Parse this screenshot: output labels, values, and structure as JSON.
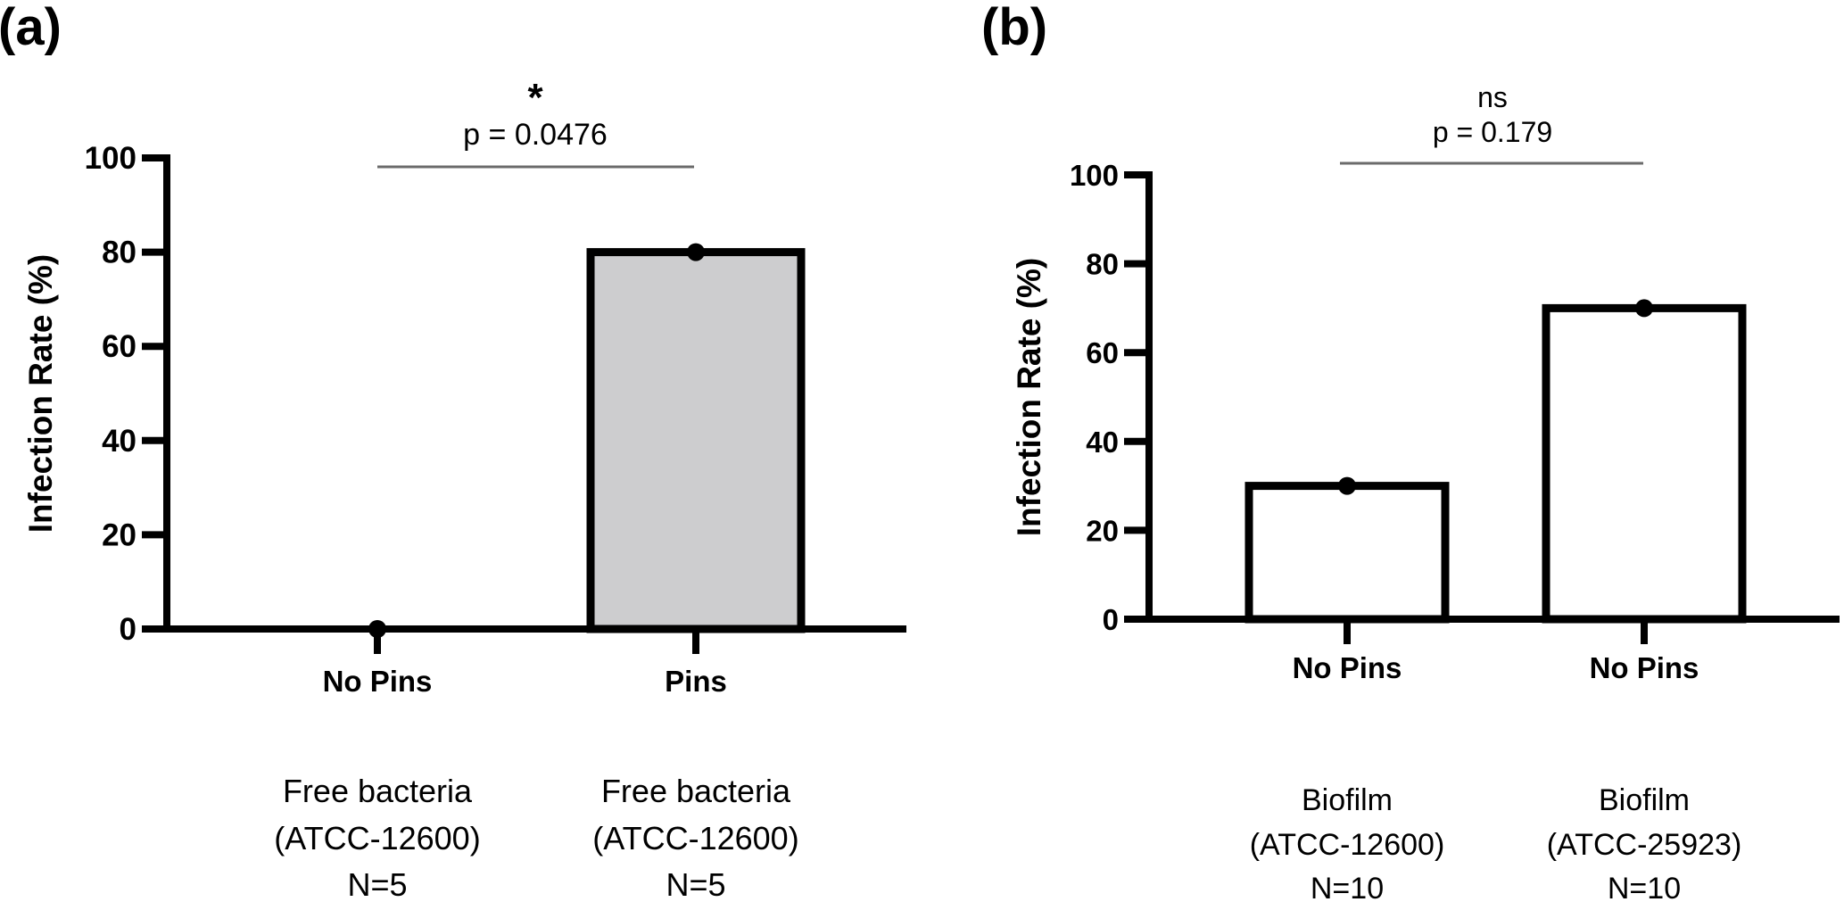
{
  "chart_data": [
    {
      "type": "bar",
      "panel_label": "(a)",
      "ylabel": "Infection Rate (%)",
      "ylim": [
        0,
        100
      ],
      "yticks": [
        0,
        20,
        40,
        60,
        80,
        100
      ],
      "grid": false,
      "categories": [
        "No Pins",
        "Pins"
      ],
      "group_descriptions": [
        [
          "Free bacteria",
          "(ATCC-12600)",
          "N=5"
        ],
        [
          "Free bacteria",
          "(ATCC-12600)",
          "N=5"
        ]
      ],
      "values": [
        0,
        80
      ],
      "points": [
        [
          0
        ],
        [
          80
        ]
      ],
      "bar_fills": [
        "#ffffff",
        "#cdcdcf"
      ],
      "significance": {
        "between": [
          0,
          1
        ],
        "label": "*",
        "p_text": "p = 0.0476",
        "p_value": 0.0476
      }
    },
    {
      "type": "bar",
      "panel_label": "(b)",
      "ylabel": "Infection Rate (%)",
      "ylim": [
        0,
        100
      ],
      "yticks": [
        0,
        20,
        40,
        60,
        80,
        100
      ],
      "grid": false,
      "categories": [
        "No Pins",
        "No Pins"
      ],
      "group_descriptions": [
        [
          "Biofilm",
          "(ATCC-12600)",
          "N=10"
        ],
        [
          "Biofilm",
          "(ATCC-25923)",
          "N=10"
        ]
      ],
      "values": [
        30,
        70
      ],
      "points": [
        [
          30
        ],
        [
          70
        ]
      ],
      "bar_fills": [
        "#ffffff",
        "#ffffff"
      ],
      "significance": {
        "between": [
          0,
          1
        ],
        "label": "ns",
        "p_text": "p = 0.179",
        "p_value": 0.179
      }
    }
  ]
}
